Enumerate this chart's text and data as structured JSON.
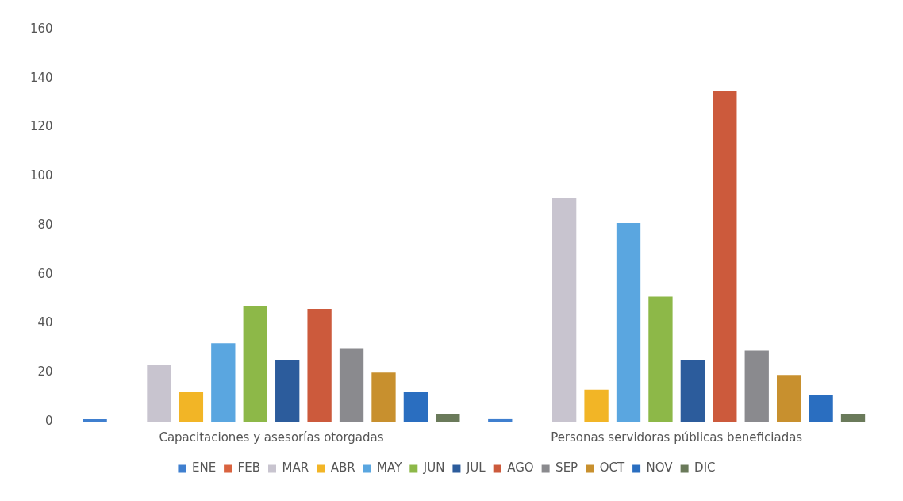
{
  "chart_data": {
    "type": "bar",
    "categories": [
      "Capacitaciones y asesorías otorgadas",
      "Personas servidoras públicas beneficiadas"
    ],
    "series": [
      {
        "name": "ENE",
        "color": "#3f7fcf",
        "values": [
          1,
          1
        ]
      },
      {
        "name": "FEB",
        "color": "#d9633f",
        "values": [
          0,
          0
        ]
      },
      {
        "name": "MAR",
        "color": "#c8c4cf",
        "values": [
          23,
          91
        ]
      },
      {
        "name": "ABR",
        "color": "#f2b526",
        "values": [
          12,
          13
        ]
      },
      {
        "name": "MAY",
        "color": "#5aa6e0",
        "values": [
          32,
          81
        ]
      },
      {
        "name": "JUN",
        "color": "#8db848",
        "values": [
          47,
          51
        ]
      },
      {
        "name": "JUL",
        "color": "#2c5c9c",
        "values": [
          25,
          25
        ]
      },
      {
        "name": "AGO",
        "color": "#cc5a3c",
        "values": [
          46,
          135
        ]
      },
      {
        "name": "SEP",
        "color": "#8a8a8e",
        "values": [
          30,
          29
        ]
      },
      {
        "name": "OCT",
        "color": "#c8902e",
        "values": [
          20,
          19
        ]
      },
      {
        "name": "NOV",
        "color": "#2a6ec0",
        "values": [
          12,
          11
        ]
      },
      {
        "name": "DIC",
        "color": "#6a7a5a",
        "values": [
          3,
          3
        ]
      }
    ],
    "ylim": [
      0,
      160
    ],
    "yticks": [
      0,
      20,
      40,
      60,
      80,
      100,
      120,
      140,
      160
    ],
    "grid": false,
    "legend": "bottom"
  }
}
